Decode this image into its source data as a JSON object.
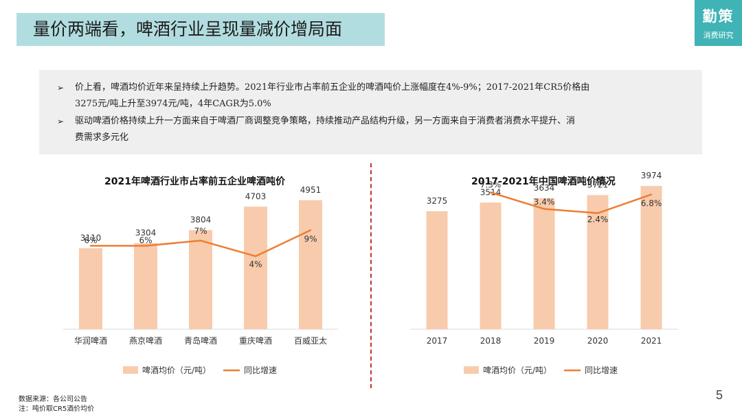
{
  "header": {
    "title": "量价两端看，啤酒行业呈现量减价增局面",
    "logo_main": "勤策",
    "logo_sub": "消费研究"
  },
  "summary": {
    "bullet_icon": "arrow-bullet-icon",
    "items": [
      {
        "line1": "价上看，啤酒均价近年来呈持续上升趋势。2021年行业市占率前五企业的啤酒吨价上涨幅度在4%-9%；2017-2021年CR5价格由",
        "line2": "3275元/吨上升至3974元/吨，4年CAGR为5.0%"
      },
      {
        "line1": "驱动啤酒价格持续上升一方面来自于啤酒厂商调整竞争策略，持续推动产品结构升级，另一方面来自于消费者消费水平提升、消",
        "line2": "费需求多元化"
      }
    ]
  },
  "colors": {
    "bar": "#f8cbad",
    "line": "#ed7d31",
    "title_band": "#b2dde0",
    "logo_bg": "#3fb3b6",
    "divider": "#c0332a",
    "axis": "#d9d9d9"
  },
  "chart_data": [
    {
      "type": "bar",
      "title": "2021年啤酒行业市占率前五企业啤酒吨价",
      "categories": [
        "华润啤酒",
        "燕京啤酒",
        "青岛啤酒",
        "重庆啤酒",
        "百威亚太"
      ],
      "series": [
        {
          "name": "啤酒均价（元/吨）",
          "type": "bar",
          "values": [
            3110,
            3304,
            3804,
            4703,
            4951
          ],
          "labels": [
            "3110",
            "3304",
            "3804",
            "4703",
            "4951"
          ]
        },
        {
          "name": "同比增速",
          "type": "line",
          "values": [
            6,
            6,
            7,
            4,
            9
          ],
          "labels": [
            "6%",
            "6%",
            "7%",
            "4%",
            "9%"
          ]
        }
      ],
      "ylim_bar": [
        0,
        6000
      ],
      "ylim_line": [
        -10,
        20
      ],
      "legend": "bottom",
      "grid": false
    },
    {
      "type": "bar",
      "title": "2017-2021年中国啤酒吨价情况",
      "categories": [
        "2017",
        "2018",
        "2019",
        "2020",
        "2021"
      ],
      "series": [
        {
          "name": "啤酒均价（元/吨）",
          "type": "bar",
          "values": [
            3275,
            3514,
            3634,
            3721,
            3974
          ],
          "labels": [
            "3275",
            "3514",
            "3634",
            "3721",
            "3974"
          ]
        },
        {
          "name": "同比增速",
          "type": "line",
          "values": [
            null,
            7.3,
            3.4,
            2.4,
            6.8
          ],
          "labels": [
            "",
            "7.3%",
            "3.4%",
            "2.4%",
            "6.8%"
          ]
        }
      ],
      "ylim_bar": [
        0,
        4700
      ],
      "ylim_line": [
        -25,
        15
      ],
      "legend": "bottom",
      "grid": false
    }
  ],
  "footer": {
    "source": "数据来源：各公司公告",
    "note": "注：吨价取CR5酒价均价",
    "page_number": "5"
  }
}
